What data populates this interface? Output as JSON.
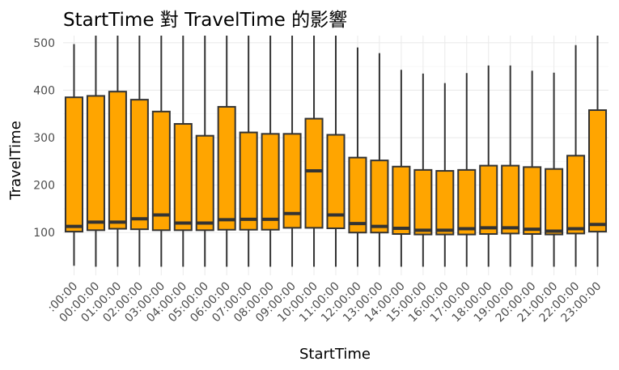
{
  "chart_data": {
    "type": "boxplot",
    "title": "StartTime 對 TravelTime 的影響",
    "xlabel": "StartTime",
    "ylabel": "TravelTime",
    "ylim": [
      10,
      515
    ],
    "yticks": [
      100,
      200,
      300,
      400,
      500
    ],
    "grid": true,
    "box_color": "#FFA500",
    "line_color": "#333333",
    "categories": [
      ":00:00",
      "00:00:00",
      "01:00:00",
      "02:00:00",
      "03:00:00",
      "04:00:00",
      "05:00:00",
      "06:00:00",
      "07:00:00",
      "08:00:00",
      "09:00:00",
      "10:00:00",
      "11:00:00",
      "12:00:00",
      "13:00:00",
      "14:00:00",
      "15:00:00",
      "16:00:00",
      "17:00:00",
      "18:00:00",
      "19:00:00",
      "20:00:00",
      "21:00:00",
      "22:00:00",
      "23:00:00"
    ],
    "boxes": [
      {
        "min": 30,
        "q1": 102,
        "median": 113,
        "q3": 385,
        "max": 497
      },
      {
        "min": 28,
        "q1": 105,
        "median": 122,
        "q3": 388,
        "max": 515
      },
      {
        "min": 28,
        "q1": 108,
        "median": 122,
        "q3": 397,
        "max": 515
      },
      {
        "min": 28,
        "q1": 107,
        "median": 129,
        "q3": 380,
        "max": 515
      },
      {
        "min": 28,
        "q1": 105,
        "median": 137,
        "q3": 355,
        "max": 515
      },
      {
        "min": 28,
        "q1": 105,
        "median": 120,
        "q3": 329,
        "max": 515
      },
      {
        "min": 28,
        "q1": 105,
        "median": 120,
        "q3": 304,
        "max": 515
      },
      {
        "min": 28,
        "q1": 106,
        "median": 127,
        "q3": 365,
        "max": 515
      },
      {
        "min": 28,
        "q1": 106,
        "median": 128,
        "q3": 311,
        "max": 515
      },
      {
        "min": 28,
        "q1": 106,
        "median": 128,
        "q3": 308,
        "max": 515
      },
      {
        "min": 28,
        "q1": 110,
        "median": 140,
        "q3": 308,
        "max": 515
      },
      {
        "min": 28,
        "q1": 110,
        "median": 230,
        "q3": 340,
        "max": 515
      },
      {
        "min": 28,
        "q1": 109,
        "median": 137,
        "q3": 306,
        "max": 515
      },
      {
        "min": 28,
        "q1": 100,
        "median": 119,
        "q3": 258,
        "max": 490
      },
      {
        "min": 28,
        "q1": 100,
        "median": 113,
        "q3": 252,
        "max": 478
      },
      {
        "min": 28,
        "q1": 97,
        "median": 109,
        "q3": 239,
        "max": 443
      },
      {
        "min": 28,
        "q1": 96,
        "median": 105,
        "q3": 232,
        "max": 435
      },
      {
        "min": 28,
        "q1": 96,
        "median": 105,
        "q3": 230,
        "max": 415
      },
      {
        "min": 28,
        "q1": 96,
        "median": 108,
        "q3": 232,
        "max": 436
      },
      {
        "min": 28,
        "q1": 97,
        "median": 110,
        "q3": 241,
        "max": 452
      },
      {
        "min": 28,
        "q1": 98,
        "median": 110,
        "q3": 241,
        "max": 452
      },
      {
        "min": 28,
        "q1": 97,
        "median": 107,
        "q3": 238,
        "max": 441
      },
      {
        "min": 28,
        "q1": 96,
        "median": 103,
        "q3": 234,
        "max": 437
      },
      {
        "min": 28,
        "q1": 98,
        "median": 108,
        "q3": 262,
        "max": 495
      },
      {
        "min": 28,
        "q1": 102,
        "median": 117,
        "q3": 358,
        "max": 515
      }
    ]
  }
}
